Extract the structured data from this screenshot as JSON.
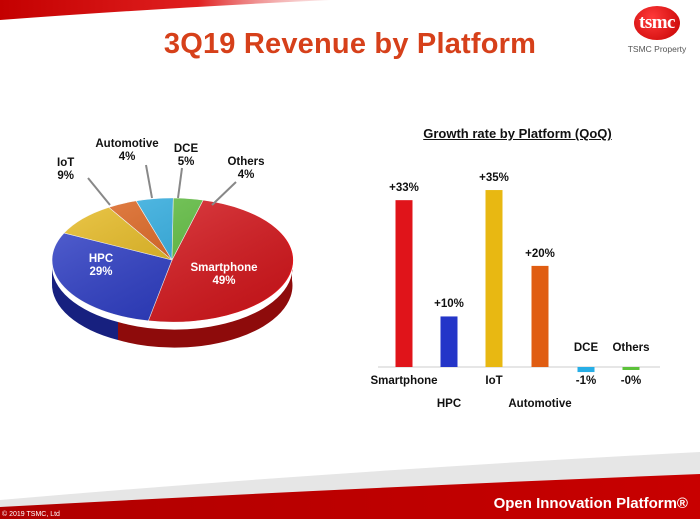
{
  "slide": {
    "title": "3Q19 Revenue by Platform",
    "logo": {
      "text": "tsmc",
      "subtitle": "TSMC Property"
    },
    "footer": {
      "tagline": "Open Innovation Platform®",
      "copyright": "© 2019 TSMC, Ltd"
    }
  },
  "colors": {
    "title": "#d6401a",
    "smartphone": "#e0141a",
    "hpc": "#2435c8",
    "iot": "#e8b812",
    "automotive": "#e05d12",
    "dce": "#27aee6",
    "others": "#5cc23a"
  },
  "chart_data": [
    {
      "type": "pie",
      "title": "",
      "slices": [
        {
          "label": "Smartphone",
          "value": 49,
          "text": "49%"
        },
        {
          "label": "HPC",
          "value": 29,
          "text": "29%"
        },
        {
          "label": "IoT",
          "value": 9,
          "text": "9%"
        },
        {
          "label": "Automotive",
          "value": 4,
          "text": "4%"
        },
        {
          "label": "DCE",
          "value": 5,
          "text": "5%"
        },
        {
          "label": "Others",
          "value": 4,
          "text": "4%"
        }
      ]
    },
    {
      "type": "bar",
      "title": "Growth rate by Platform (QoQ)",
      "categories": [
        "Smartphone",
        "HPC",
        "IoT",
        "Automotive",
        "DCE",
        "Others"
      ],
      "values": [
        33,
        10,
        35,
        20,
        -1,
        -0.3
      ],
      "labels": [
        "+33%",
        "+10%",
        "+35%",
        "+20%",
        "-1%",
        "-0%"
      ],
      "ylim": [
        -2,
        36
      ]
    }
  ]
}
